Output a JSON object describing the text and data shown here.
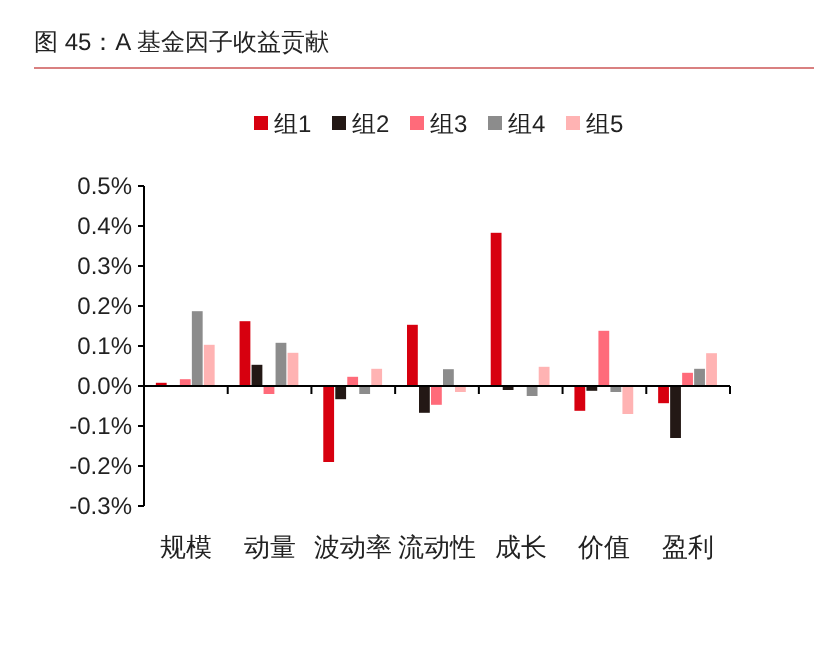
{
  "chart_data": {
    "type": "bar",
    "title": "图 45：A 基金因子收益贡献",
    "categories": [
      "规模",
      "动量",
      "波动率",
      "流动性",
      "成长",
      "价值",
      "盈利"
    ],
    "series": [
      {
        "name": "组1",
        "color": "#d7000f",
        "values": [
          0.008,
          0.162,
          -0.19,
          0.153,
          0.383,
          -0.062,
          -0.043
        ]
      },
      {
        "name": "组2",
        "color": "#231815",
        "values": [
          0,
          0.053,
          -0.033,
          -0.067,
          -0.01,
          -0.012,
          -0.13
        ]
      },
      {
        "name": "组3",
        "color": "#ff6b7a",
        "values": [
          0.017,
          -0.02,
          0.023,
          -0.047,
          null,
          0.138,
          0.033
        ]
      },
      {
        "name": "组4",
        "color": "#8c8c8c",
        "values": [
          0.187,
          0.108,
          -0.02,
          0.042,
          -0.025,
          -0.015,
          0.043
        ]
      },
      {
        "name": "组5",
        "color": "#ffb3b3",
        "values": [
          0.103,
          0.083,
          0.043,
          -0.015,
          0.048,
          -0.07,
          0.082
        ]
      }
    ],
    "ylim": [
      -0.3,
      0.5
    ],
    "yticks": [
      {
        "value": -0.3,
        "label": "-0.3%"
      },
      {
        "value": -0.2,
        "label": "-0.2%"
      },
      {
        "value": -0.1,
        "label": "-0.1%"
      },
      {
        "value": 0,
        "label": "0.0%"
      },
      {
        "value": 0.1,
        "label": "0.1%"
      },
      {
        "value": 0.2,
        "label": "0.2%"
      },
      {
        "value": 0.3,
        "label": "0.3%"
      },
      {
        "value": 0.4,
        "label": "0.4%"
      },
      {
        "value": 0.5,
        "label": "0.5%"
      }
    ],
    "legend": "top"
  }
}
